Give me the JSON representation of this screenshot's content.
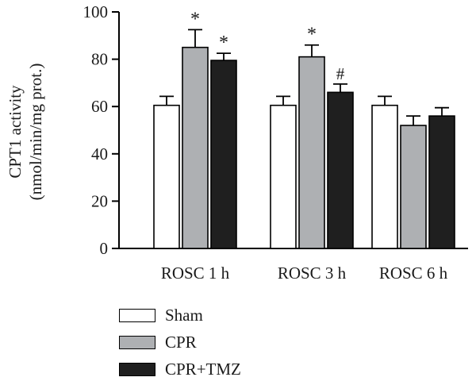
{
  "chart_data": {
    "type": "bar",
    "categories": [
      "ROSC 1 h",
      "ROSC 3 h",
      "ROSC 6 h"
    ],
    "series": [
      {
        "name": "Sham",
        "color": "#ffffff",
        "values": [
          60.5,
          60.5,
          60.5
        ],
        "errors": [
          3.8,
          3.8,
          3.8
        ],
        "annotations": [
          "",
          "",
          ""
        ]
      },
      {
        "name": "CPR",
        "color": "#aeb0b3",
        "values": [
          85,
          81,
          52
        ],
        "errors": [
          7.5,
          5,
          4
        ],
        "annotations": [
          "*",
          "*",
          ""
        ]
      },
      {
        "name": "CPR+TMZ",
        "color": "#1f1f1f",
        "values": [
          79.5,
          66,
          56
        ],
        "errors": [
          3,
          3.5,
          3.5
        ],
        "annotations": [
          "*",
          "#",
          ""
        ]
      }
    ],
    "ylabel_lines": [
      "CPT1 activity",
      "(nmol/min/mg prot.)"
    ],
    "ylim": [
      0,
      100
    ],
    "yticks": [
      0,
      20,
      40,
      60,
      80,
      100
    ],
    "grid": false,
    "legend_position": "bottom-left"
  }
}
